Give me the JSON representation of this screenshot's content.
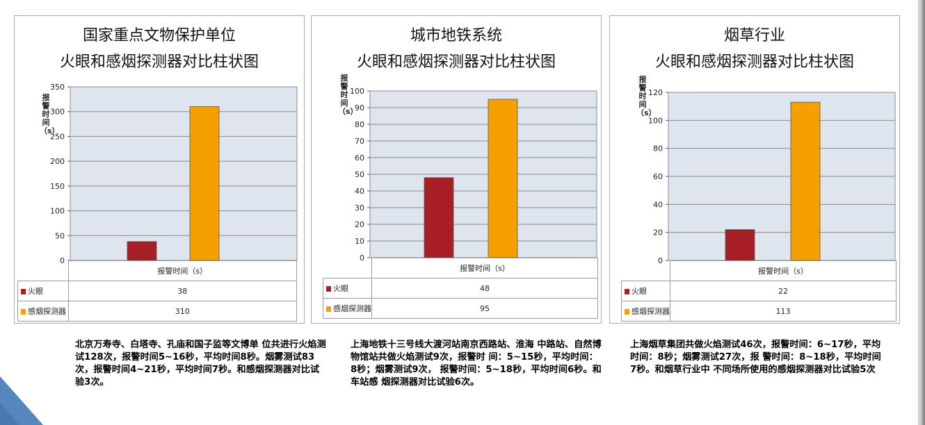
{
  "colors": {
    "fire_eye": "#a51f24",
    "smoke_detector": "#f5a000",
    "plot_bg": "#dfe5ee",
    "grid": "#8a8a8a"
  },
  "chart_data": [
    {
      "type": "bar",
      "title_line1": "国家重点文物保护单位",
      "title_line2": "火眼和感烟探测器对比柱状图",
      "ylabel": "报警时间（s）",
      "xlabel": "报警时间（s）",
      "categories": [
        "报警时间（s）"
      ],
      "ylim": [
        0,
        350
      ],
      "yticks": [
        0,
        50,
        100,
        150,
        200,
        250,
        300,
        350
      ],
      "series": [
        {
          "name": "火眼",
          "values": [
            38
          ]
        },
        {
          "name": "感烟探测器",
          "values": [
            310
          ]
        }
      ],
      "grid": true,
      "legend": "data-table-below"
    },
    {
      "type": "bar",
      "title_line1": "城市地铁系统",
      "title_line2": "火眼和感烟探测器对比柱状图",
      "ylabel": "报警时间（s）",
      "xlabel": "报警时间（s）",
      "categories": [
        "报警时间（s）"
      ],
      "ylim": [
        0,
        100
      ],
      "yticks": [
        0,
        10,
        20,
        30,
        40,
        50,
        60,
        70,
        80,
        90,
        100
      ],
      "series": [
        {
          "name": "火眼",
          "values": [
            48
          ]
        },
        {
          "name": "感烟探测器",
          "values": [
            95
          ]
        }
      ],
      "grid": true,
      "legend": "data-table-below"
    },
    {
      "type": "bar",
      "title_line1": "烟草行业",
      "title_line2": "火眼和感烟探测器对比柱状图",
      "ylabel": "报警时间（s）",
      "xlabel": "报警时间（s）",
      "categories": [
        "报警时间（s）"
      ],
      "ylim": [
        0,
        120
      ],
      "yticks": [
        0,
        20,
        40,
        60,
        80,
        100,
        120
      ],
      "series": [
        {
          "name": "火眼",
          "values": [
            22
          ]
        },
        {
          "name": "感烟探测器",
          "values": [
            113
          ]
        }
      ],
      "grid": true,
      "legend": "data-table-below"
    }
  ],
  "descriptions": [
    "北京万寿寺、白塔寺、孔庙和国子监等文博单 位共进行火焰测试128次，报警时间5~16秒，平均时间8秒。烟雾测试83次，报警时间4~21秒，平均时间7秒。和感烟探测器对比试验3次。",
    "上海地铁十三号线大渡河站南京西路站、淮海 中路站、自然博物馆站共做火焰测试9次，报警时 间：5~15秒，平均时间：8秒；烟雾测试9次， 报警时间：5~18秒，平均时间6秒。和车站感 烟探测器对比试验6次。",
    "上海烟草集团共做火焰测试46次，报警时间：6~17秒，平均时间：8秒；烟雾测试27次，报 警时间：8~18秒，平均时间7秒。和烟草行业中 不同场所使用的感烟探测器对比试验5次"
  ]
}
